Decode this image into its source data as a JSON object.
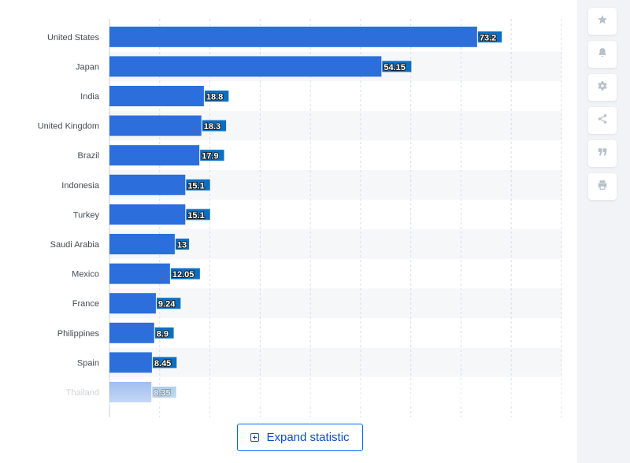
{
  "chart_data": {
    "type": "bar",
    "orientation": "horizontal",
    "categories": [
      "United States",
      "Japan",
      "India",
      "United Kingdom",
      "Brazil",
      "Indonesia",
      "Turkey",
      "Saudi Arabia",
      "Mexico",
      "France",
      "Philippines",
      "Spain",
      "Thailand"
    ],
    "values": [
      73.2,
      54.15,
      18.8,
      18.3,
      17.9,
      15.1,
      15.1,
      13,
      12.05,
      9.24,
      8.9,
      8.45,
      8.35
    ],
    "value_labels": [
      "73.2",
      "54.15",
      "18.8",
      "18.3",
      "17.9",
      "15.1",
      "15.1",
      "13",
      "12.05",
      "9.24",
      "8.9",
      "8.45",
      "8.35"
    ],
    "xlim": [
      0,
      90
    ],
    "grid": true,
    "bar_color": "#2c6fdc",
    "label_bg_color": "#0b6fc1"
  },
  "expand_button": {
    "label": "Expand statistic"
  },
  "toolbar": {
    "icons": [
      "star-icon",
      "bell-icon",
      "gear-icon",
      "share-icon",
      "quote-icon",
      "print-icon"
    ]
  },
  "colors": {
    "card": "#ffffff",
    "page": "#f1f3f6",
    "stripe": "#f6f7f9",
    "grid": "#d9dde2",
    "accent": "#0066ff"
  }
}
